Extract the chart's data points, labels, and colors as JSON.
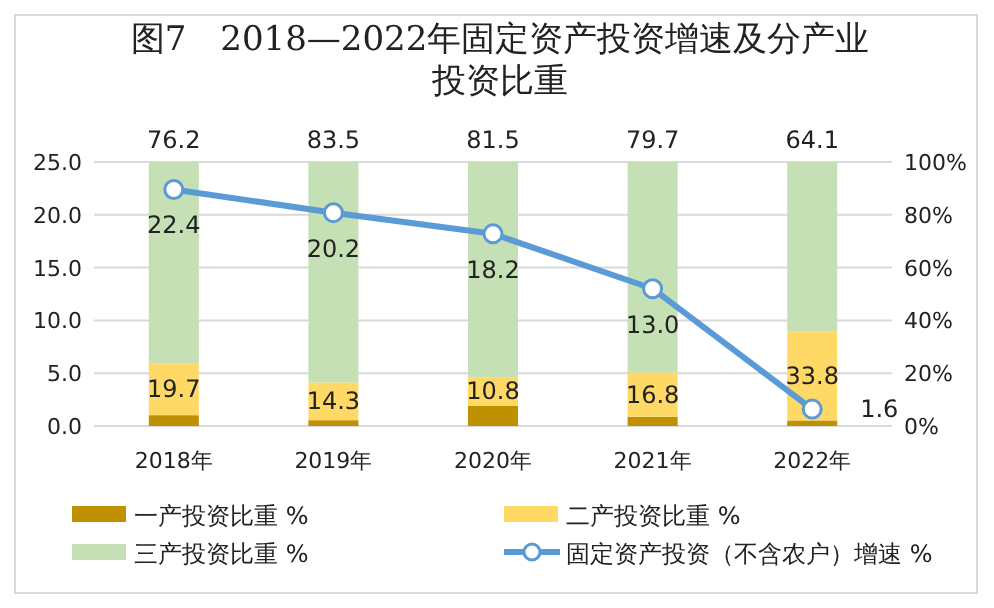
{
  "chart_data": {
    "type": "bar",
    "title": "图7　2018—2022年固定资产投资增速及分产业投资比重",
    "categories": [
      "2018年",
      "2019年",
      "2020年",
      "2021年",
      "2022年"
    ],
    "stacked": true,
    "grid": "y",
    "legend": "bottom",
    "ylim": [
      0,
      25
    ],
    "yticks": [
      {
        "value": 0,
        "label": "0.0"
      },
      {
        "value": 5,
        "label": "5.0"
      },
      {
        "value": 10,
        "label": "10.0"
      },
      {
        "value": 15,
        "label": "15.0"
      },
      {
        "value": 20,
        "label": "20.0"
      },
      {
        "value": 25,
        "label": "25.0"
      }
    ],
    "y2lim": [
      0,
      100
    ],
    "y2ticks": [
      {
        "value": 0,
        "label": "0%"
      },
      {
        "value": 20,
        "label": "20%"
      },
      {
        "value": 40,
        "label": "40%"
      },
      {
        "value": 60,
        "label": "60%"
      },
      {
        "value": 80,
        "label": "80%"
      },
      {
        "value": 100,
        "label": "100%"
      }
    ],
    "series": [
      {
        "name": "一产投资比重 %",
        "axis": "y2",
        "color": "#bf9000",
        "values": [
          4.1,
          2.2,
          7.7,
          3.5,
          2.1
        ]
      },
      {
        "name": "二产投资比重 %",
        "axis": "y2",
        "color": "#ffd966",
        "values": [
          19.7,
          14.3,
          10.8,
          16.8,
          33.8
        ],
        "value_labels": [
          "19.7",
          "14.3",
          "10.8",
          "16.8",
          "33.8"
        ]
      },
      {
        "name": "三产投资比重 %",
        "axis": "y2",
        "color": "#c5e0b4",
        "values": [
          76.2,
          83.5,
          81.5,
          79.7,
          64.1
        ],
        "value_labels": [
          "76.2",
          "83.5",
          "81.5",
          "79.7",
          "64.1"
        ]
      },
      {
        "name": "固定资产投资（不含农户）增速 %",
        "type": "line",
        "axis": "y",
        "color": "#5b9bd5",
        "marker": "circle",
        "values": [
          22.4,
          20.2,
          18.2,
          13.0,
          1.6
        ],
        "value_labels": [
          "22.4",
          "20.2",
          "18.2",
          "13.0",
          "1.6"
        ]
      }
    ]
  }
}
